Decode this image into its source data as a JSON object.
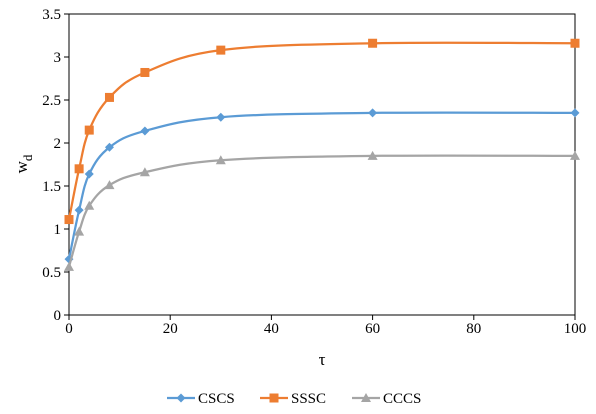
{
  "chart_data": {
    "type": "line",
    "xlabel": "τ",
    "ylabel": "w",
    "ylabel_subscript": "d",
    "xlim": [
      0,
      100
    ],
    "ylim": [
      0,
      3.5
    ],
    "xticks": [
      "0",
      "20",
      "40",
      "60",
      "80",
      "100"
    ],
    "yticks": [
      "0",
      "0.5",
      "1",
      "1.5",
      "2",
      "2.5",
      "3",
      "3.5"
    ],
    "grid": false,
    "legend_position": "bottom",
    "x": [
      0,
      2,
      4,
      8,
      15,
      30,
      60,
      100
    ],
    "series": [
      {
        "name": "CSCS",
        "color": "#5B9BD5",
        "marker": "diamond",
        "values": [
          0.65,
          1.22,
          1.64,
          1.95,
          2.14,
          2.3,
          2.35,
          2.35
        ]
      },
      {
        "name": "SSSC",
        "color": "#ED7D31",
        "marker": "square",
        "values": [
          1.11,
          1.7,
          2.15,
          2.53,
          2.82,
          3.08,
          3.16,
          3.16
        ]
      },
      {
        "name": "CCCS",
        "color": "#A5A5A5",
        "marker": "triangle",
        "values": [
          0.56,
          0.97,
          1.27,
          1.51,
          1.66,
          1.8,
          1.85,
          1.85
        ]
      }
    ]
  }
}
